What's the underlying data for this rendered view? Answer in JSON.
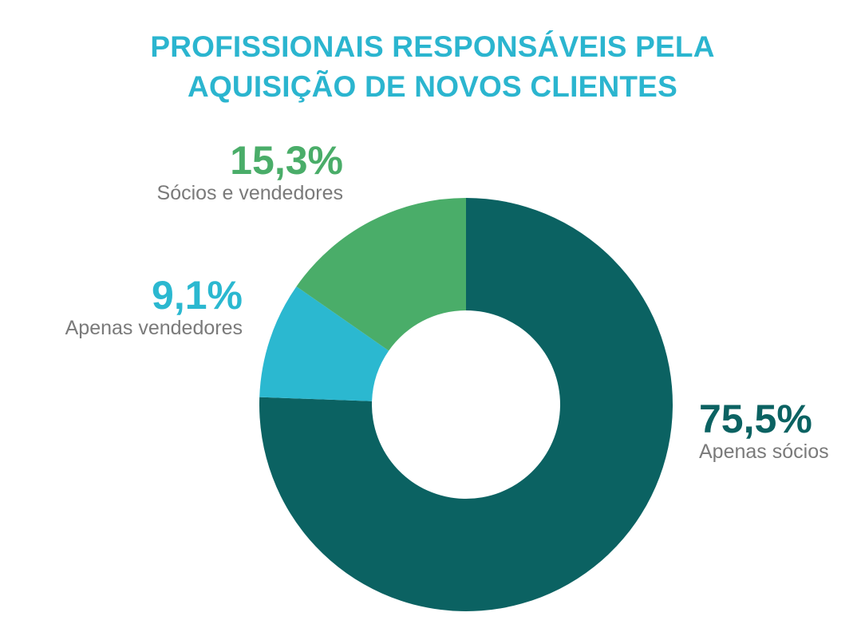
{
  "chart_data": {
    "type": "pie",
    "variant": "donut",
    "title": [
      "PROFISSIONAIS RESPONSÁVEIS PELA",
      "AQUISIÇÃO DE NOVOS CLIENTES"
    ],
    "slices": [
      {
        "label": "Apenas sócios",
        "value": 75.5,
        "value_label": "75,5%",
        "color": "#0b6262"
      },
      {
        "label": "Apenas vendedores",
        "value": 9.1,
        "value_label": "9,1%",
        "color": "#2bb8d0"
      },
      {
        "label": "Sócios e vendedores",
        "value": 15.3,
        "value_label": "15,3%",
        "color": "#4aad69"
      }
    ],
    "start_angle_deg": 0,
    "direction": "clockwise",
    "legend": "none",
    "background": "#ffffff",
    "title_color": "#2bb5cf",
    "category_text_color": "#7a7a7a"
  }
}
